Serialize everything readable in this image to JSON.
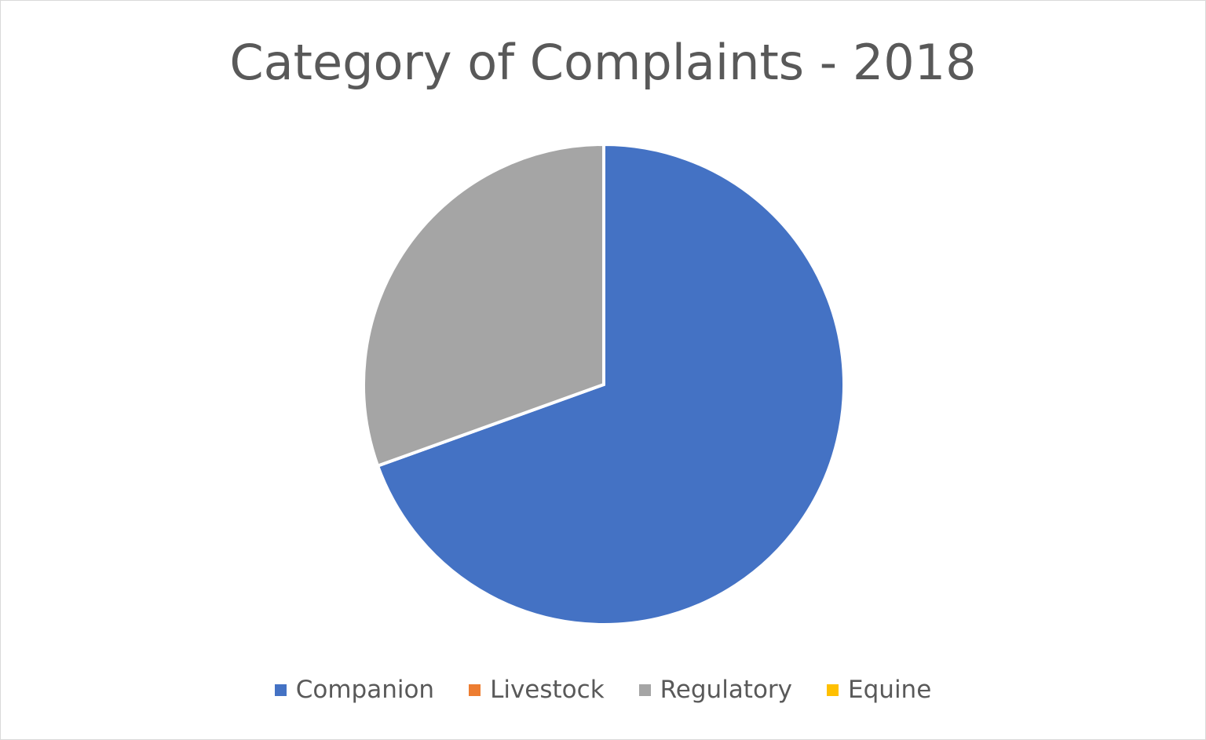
{
  "chart_data": {
    "type": "pie",
    "title": "Category of Complaints - 2018",
    "categories": [
      "Companion",
      "Livestock",
      "Regulatory",
      "Equine"
    ],
    "values": [
      69.5,
      0,
      30.5,
      0
    ],
    "colors": [
      "#4472C4",
      "#ED7D31",
      "#A5A5A5",
      "#FFC000"
    ],
    "start_angle": "12 o'clock, clockwise",
    "legend_position": "bottom"
  }
}
